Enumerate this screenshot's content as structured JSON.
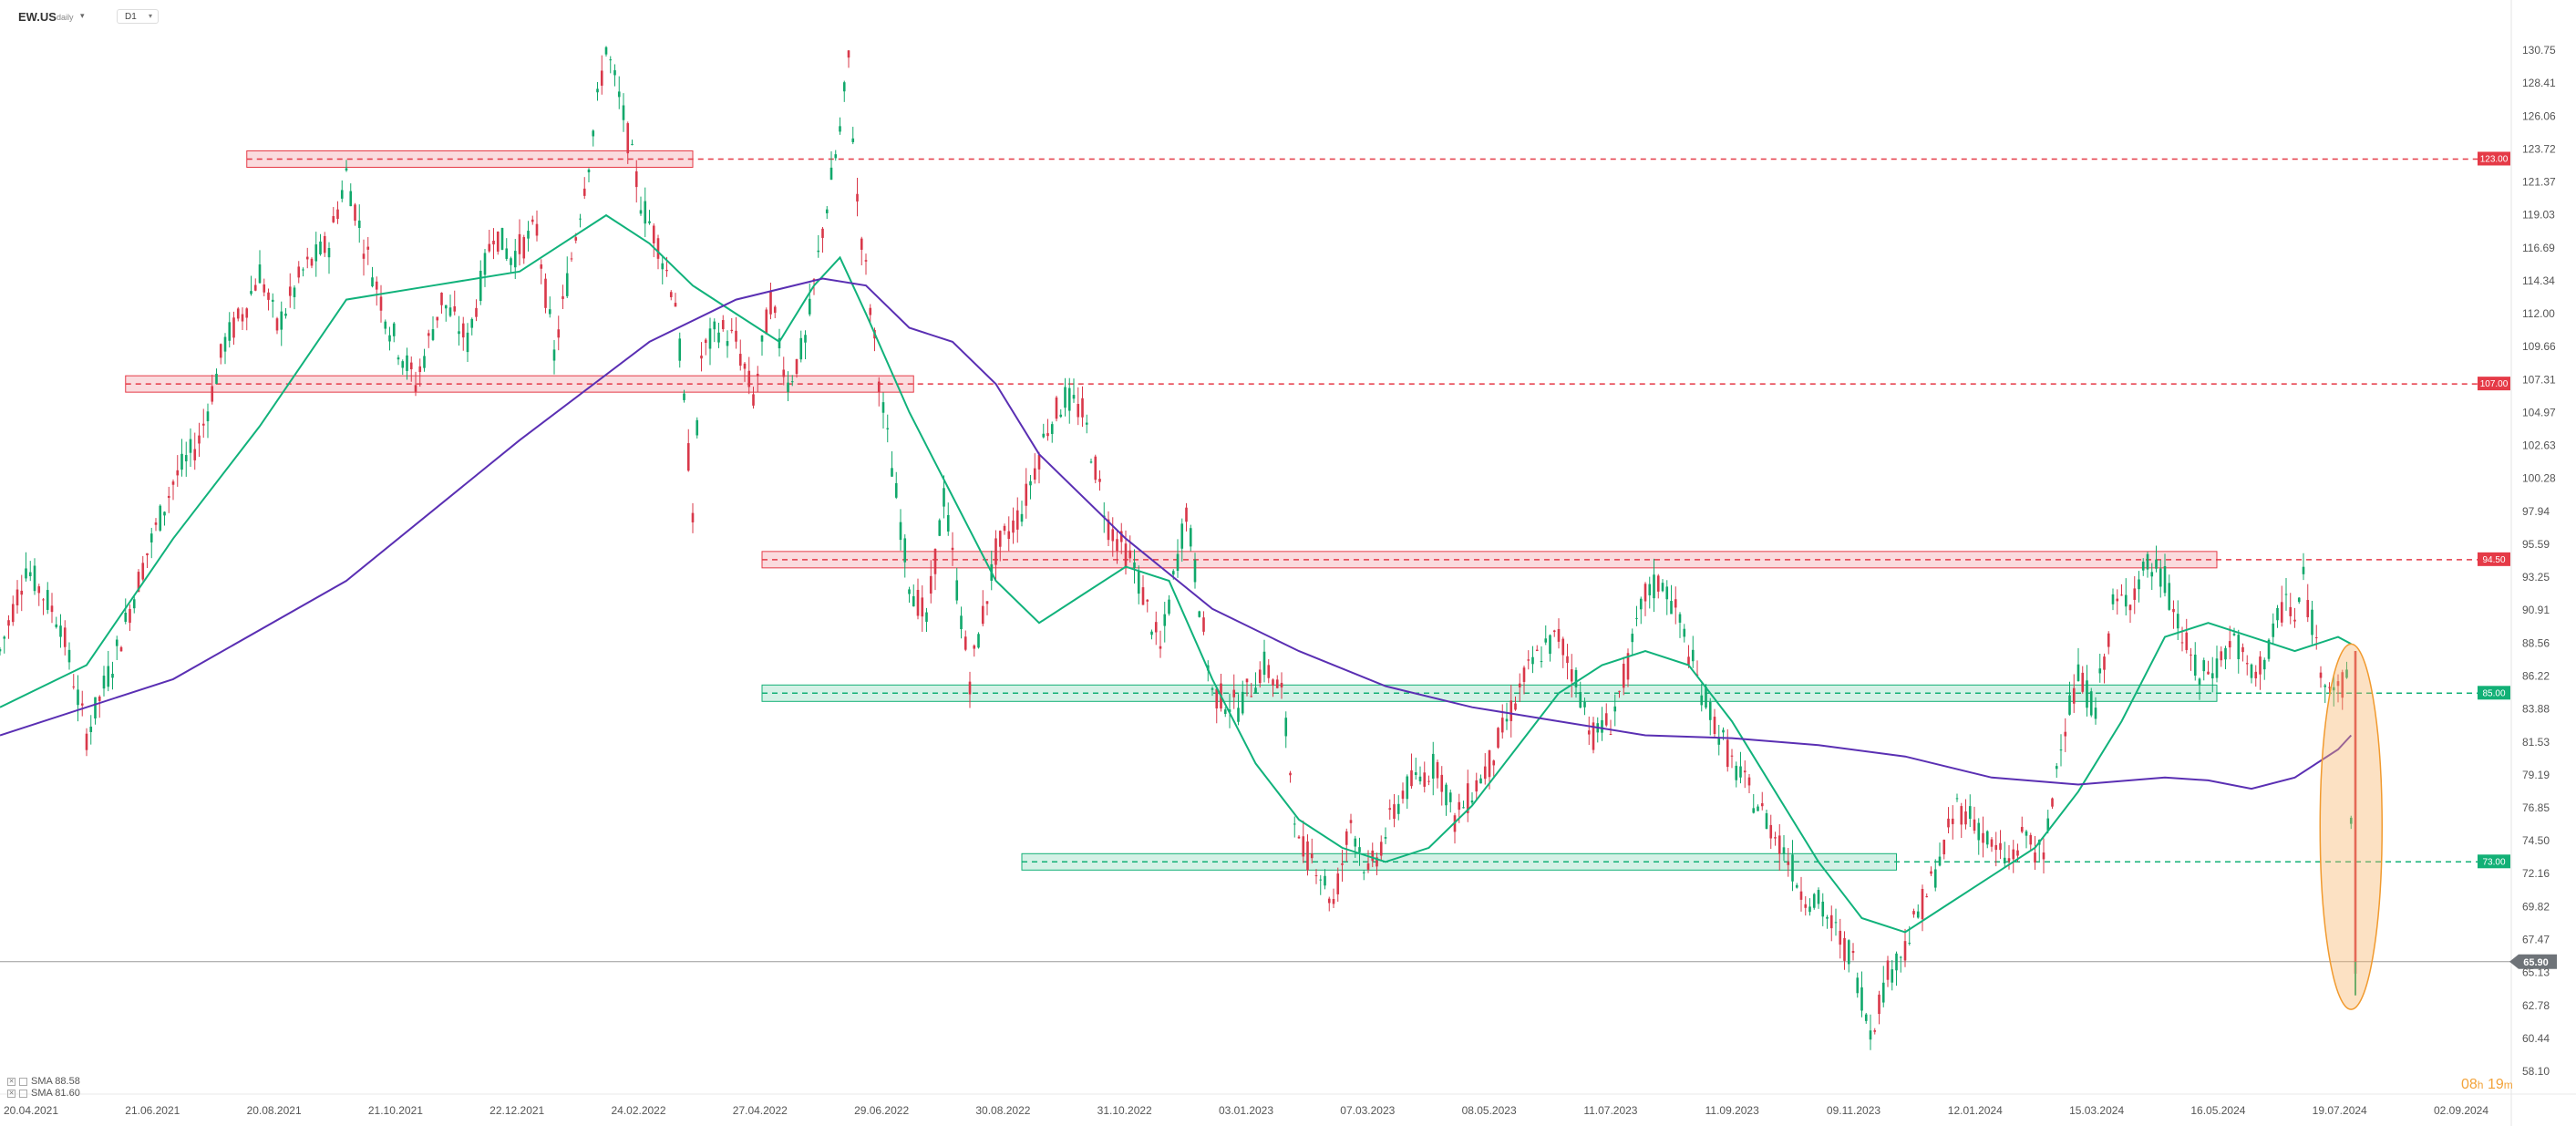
{
  "header": {
    "symbol": "EW.US",
    "symbol_sub": "daily",
    "timeframe": "D1"
  },
  "timer": {
    "hours": "08",
    "h_unit": "h",
    "minutes": "19",
    "m_unit": "m"
  },
  "legend": [
    {
      "label": "SMA 88.58",
      "color": "#11b27b"
    },
    {
      "label": "SMA 81.60",
      "color": "#5a2fb3"
    }
  ],
  "colors": {
    "up": "#11a86b",
    "down": "#d9384a",
    "resistance": "#e53a47",
    "support": "#12b076",
    "sma_fast": "#11b27b",
    "sma_slow": "#5a2fb3",
    "highlight": "#f7b46a"
  },
  "chart_data": {
    "type": "candlestick",
    "instrument": "EW.US",
    "timeframe": "D1",
    "y_axis_ticks": [
      "130.75",
      "128.41",
      "126.06",
      "123.72",
      "121.37",
      "119.03",
      "116.69",
      "114.34",
      "112.00",
      "109.66",
      "107.31",
      "104.97",
      "102.63",
      "100.28",
      "97.94",
      "95.59",
      "93.25",
      "90.91",
      "88.56",
      "86.22",
      "83.88",
      "81.53",
      "79.19",
      "76.85",
      "74.50",
      "72.16",
      "69.82",
      "67.47",
      "65.13",
      "62.78",
      "60.44",
      "58.10"
    ],
    "x_axis_ticks": [
      "20.04.2021",
      "21.06.2021",
      "20.08.2021",
      "21.10.2021",
      "22.12.2021",
      "24.02.2022",
      "27.04.2022",
      "29.06.2022",
      "30.08.2022",
      "31.10.2022",
      "03.01.2023",
      "07.03.2023",
      "08.05.2023",
      "11.07.2023",
      "11.09.2023",
      "09.11.2023",
      "12.01.2024",
      "15.03.2024",
      "16.05.2024",
      "19.07.2024",
      "02.09.2024"
    ],
    "ylim": [
      58.1,
      130.75
    ],
    "last_price": {
      "label": "65.90",
      "value": 65.9
    },
    "levels": [
      {
        "label": "123.00",
        "value": 123.0,
        "kind": "resistance"
      },
      {
        "label": "107.00",
        "value": 107.0,
        "kind": "resistance"
      },
      {
        "label": "94.50",
        "value": 94.5,
        "kind": "resistance"
      },
      {
        "label": "85.00",
        "value": 85.0,
        "kind": "support"
      },
      {
        "label": "73.00",
        "value": 73.0,
        "kind": "support"
      }
    ],
    "price_path": [
      [
        0,
        88
      ],
      [
        6,
        94
      ],
      [
        14,
        90
      ],
      [
        20,
        82
      ],
      [
        27,
        88
      ],
      [
        34,
        95
      ],
      [
        40,
        100
      ],
      [
        46,
        103
      ],
      [
        52,
        110
      ],
      [
        56,
        112
      ],
      [
        60,
        115
      ],
      [
        64,
        111
      ],
      [
        70,
        115
      ],
      [
        76,
        117
      ],
      [
        80,
        122
      ],
      [
        84,
        117
      ],
      [
        90,
        111
      ],
      [
        96,
        107
      ],
      [
        102,
        113
      ],
      [
        108,
        110
      ],
      [
        114,
        118
      ],
      [
        118,
        116
      ],
      [
        124,
        118
      ],
      [
        128,
        109
      ],
      [
        132,
        116
      ],
      [
        136,
        123
      ],
      [
        140,
        131
      ],
      [
        144,
        126
      ],
      [
        148,
        120
      ],
      [
        152,
        117
      ],
      [
        156,
        113
      ],
      [
        160,
        98
      ],
      [
        162,
        109
      ],
      [
        166,
        111
      ],
      [
        170,
        110
      ],
      [
        174,
        106
      ],
      [
        178,
        113
      ],
      [
        182,
        107
      ],
      [
        186,
        110
      ],
      [
        190,
        118
      ],
      [
        194,
        125
      ],
      [
        196,
        130
      ],
      [
        198,
        120
      ],
      [
        204,
        105
      ],
      [
        210,
        93
      ],
      [
        214,
        90
      ],
      [
        218,
        99
      ],
      [
        224,
        86
      ],
      [
        230,
        95
      ],
      [
        236,
        98
      ],
      [
        242,
        104
      ],
      [
        246,
        106
      ],
      [
        250,
        105
      ],
      [
        256,
        97
      ],
      [
        262,
        94
      ],
      [
        268,
        88
      ],
      [
        274,
        98
      ],
      [
        280,
        85
      ],
      [
        286,
        84
      ],
      [
        292,
        87
      ],
      [
        296,
        85
      ],
      [
        300,
        74
      ],
      [
        304,
        73
      ],
      [
        308,
        70
      ],
      [
        312,
        76
      ],
      [
        316,
        72
      ],
      [
        320,
        75
      ],
      [
        324,
        78
      ],
      [
        328,
        79
      ],
      [
        332,
        80
      ],
      [
        336,
        76
      ],
      [
        340,
        78
      ],
      [
        344,
        80
      ],
      [
        348,
        83
      ],
      [
        352,
        86
      ],
      [
        356,
        88
      ],
      [
        360,
        89
      ],
      [
        364,
        86
      ],
      [
        368,
        82
      ],
      [
        372,
        83
      ],
      [
        376,
        87
      ],
      [
        380,
        92
      ],
      [
        384,
        93
      ],
      [
        388,
        90
      ],
      [
        392,
        86
      ],
      [
        396,
        83
      ],
      [
        400,
        80
      ],
      [
        404,
        78
      ],
      [
        408,
        76
      ],
      [
        412,
        74
      ],
      [
        416,
        71
      ],
      [
        420,
        70
      ],
      [
        424,
        68
      ],
      [
        428,
        66
      ],
      [
        432,
        61
      ],
      [
        436,
        65
      ],
      [
        440,
        67
      ],
      [
        444,
        70
      ],
      [
        448,
        73
      ],
      [
        452,
        77
      ],
      [
        456,
        76
      ],
      [
        460,
        74
      ],
      [
        464,
        73
      ],
      [
        468,
        75
      ],
      [
        472,
        73
      ],
      [
        476,
        82
      ],
      [
        480,
        86
      ],
      [
        484,
        84
      ],
      [
        488,
        91
      ],
      [
        492,
        92
      ],
      [
        496,
        94
      ],
      [
        500,
        93
      ],
      [
        504,
        89
      ],
      [
        508,
        86
      ],
      [
        512,
        87
      ],
      [
        516,
        89
      ],
      [
        520,
        86
      ],
      [
        524,
        88
      ],
      [
        528,
        92
      ],
      [
        530,
        90
      ],
      [
        532,
        93
      ],
      [
        536,
        87
      ],
      [
        540,
        85
      ],
      [
        542,
        86
      ],
      [
        544,
        65.9
      ]
    ],
    "sma_fast_path": [
      [
        0,
        84
      ],
      [
        20,
        87
      ],
      [
        40,
        96
      ],
      [
        60,
        104
      ],
      [
        80,
        113
      ],
      [
        100,
        114
      ],
      [
        120,
        115
      ],
      [
        140,
        119
      ],
      [
        150,
        117
      ],
      [
        160,
        114
      ],
      [
        170,
        112
      ],
      [
        180,
        110
      ],
      [
        188,
        114
      ],
      [
        194,
        116
      ],
      [
        200,
        112
      ],
      [
        210,
        105
      ],
      [
        220,
        99
      ],
      [
        230,
        93
      ],
      [
        240,
        90
      ],
      [
        250,
        92
      ],
      [
        260,
        94
      ],
      [
        270,
        93
      ],
      [
        280,
        86
      ],
      [
        290,
        80
      ],
      [
        300,
        76
      ],
      [
        310,
        74
      ],
      [
        320,
        73
      ],
      [
        330,
        74
      ],
      [
        340,
        77
      ],
      [
        350,
        81
      ],
      [
        360,
        85
      ],
      [
        370,
        87
      ],
      [
        380,
        88
      ],
      [
        390,
        87
      ],
      [
        400,
        83
      ],
      [
        410,
        78
      ],
      [
        420,
        73
      ],
      [
        430,
        69
      ],
      [
        440,
        68
      ],
      [
        450,
        70
      ],
      [
        460,
        72
      ],
      [
        470,
        74
      ],
      [
        480,
        78
      ],
      [
        490,
        83
      ],
      [
        500,
        89
      ],
      [
        510,
        90
      ],
      [
        520,
        89
      ],
      [
        530,
        88
      ],
      [
        540,
        89
      ],
      [
        543,
        88.5
      ]
    ],
    "sma_slow_path": [
      [
        0,
        82
      ],
      [
        40,
        86
      ],
      [
        80,
        93
      ],
      [
        120,
        103
      ],
      [
        150,
        110
      ],
      [
        170,
        113
      ],
      [
        190,
        114.5
      ],
      [
        200,
        114
      ],
      [
        210,
        111
      ],
      [
        220,
        110
      ],
      [
        230,
        107
      ],
      [
        240,
        102
      ],
      [
        260,
        96
      ],
      [
        280,
        91
      ],
      [
        300,
        88
      ],
      [
        320,
        85.5
      ],
      [
        340,
        84
      ],
      [
        360,
        83
      ],
      [
        380,
        82
      ],
      [
        400,
        81.8
      ],
      [
        420,
        81.3
      ],
      [
        440,
        80.5
      ],
      [
        460,
        79
      ],
      [
        480,
        78.5
      ],
      [
        500,
        79
      ],
      [
        510,
        78.8
      ],
      [
        520,
        78.2
      ],
      [
        530,
        79
      ],
      [
        540,
        81
      ],
      [
        543,
        82
      ]
    ],
    "x_index_range": [
      0,
      580
    ],
    "highlight": {
      "shape": "ellipse",
      "x_center": 543,
      "y_low": 62.5,
      "y_high": 88.5,
      "note": ""
    }
  }
}
